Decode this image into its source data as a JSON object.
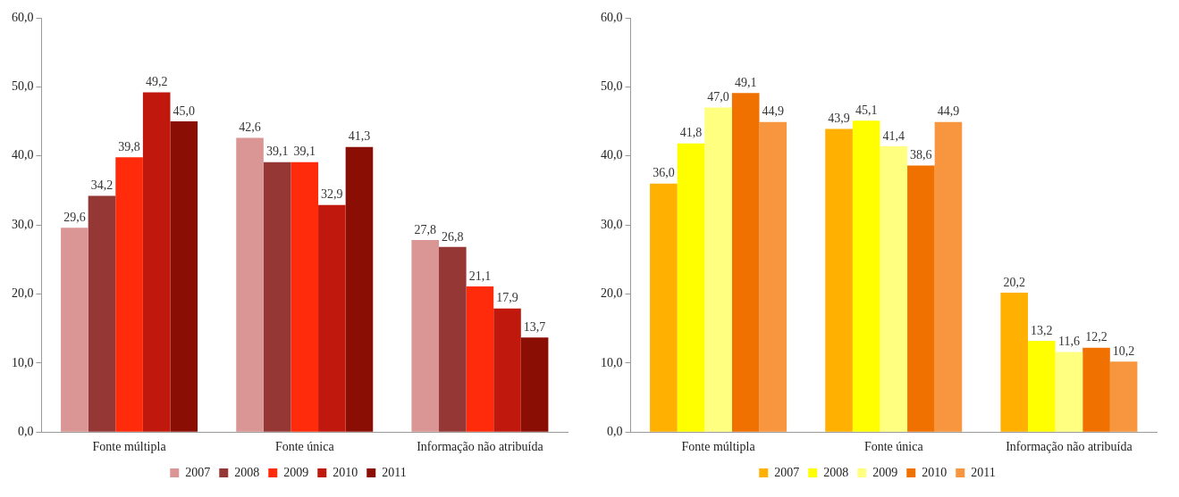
{
  "chart_data": [
    {
      "type": "bar",
      "categories": [
        "Fonte múltipla",
        "Fonte única",
        "Informação não atribuída"
      ],
      "ylim": [
        0,
        60
      ],
      "yticks": [
        {
          "value": 0,
          "label": "0,0"
        },
        {
          "value": 10,
          "label": "10,0"
        },
        {
          "value": 20,
          "label": "20,0"
        },
        {
          "value": 30,
          "label": "30,0"
        },
        {
          "value": 40,
          "label": "40,0"
        },
        {
          "value": 50,
          "label": "50,0"
        },
        {
          "value": 60,
          "label": "60,0"
        }
      ],
      "grid": false,
      "legend": "bottom",
      "series": [
        {
          "name": "2007",
          "color": "#d99694",
          "values": [
            29.6,
            42.6,
            27.8
          ],
          "value_labels": [
            "29,6",
            "42,6",
            "27,8"
          ]
        },
        {
          "name": "2008",
          "color": "#953735",
          "values": [
            34.2,
            39.1,
            26.8
          ],
          "value_labels": [
            "34,2",
            "39,1",
            "26,8"
          ]
        },
        {
          "name": "2009",
          "color": "#ff2b0a",
          "values": [
            39.8,
            39.1,
            21.1
          ],
          "value_labels": [
            "39,8",
            "39,1",
            "21,1"
          ]
        },
        {
          "name": "2010",
          "color": "#c0180c",
          "values": [
            49.2,
            32.9,
            17.9
          ],
          "value_labels": [
            "49,2",
            "32,9",
            "17,9"
          ]
        },
        {
          "name": "2011",
          "color": "#8b0e04",
          "values": [
            45.0,
            41.3,
            13.7
          ],
          "value_labels": [
            "45,0",
            "41,3",
            "13,7"
          ]
        }
      ]
    },
    {
      "type": "bar",
      "categories": [
        "Fonte múltipla",
        "Fonte única",
        "Informação não atribuída"
      ],
      "ylim": [
        0,
        60
      ],
      "yticks": [
        {
          "value": 0,
          "label": "0,0"
        },
        {
          "value": 10,
          "label": "10,0"
        },
        {
          "value": 20,
          "label": "20,0"
        },
        {
          "value": 30,
          "label": "30,0"
        },
        {
          "value": 40,
          "label": "40,0"
        },
        {
          "value": 50,
          "label": "50,0"
        },
        {
          "value": 60,
          "label": "60,0"
        }
      ],
      "grid": false,
      "legend": "bottom",
      "series": [
        {
          "name": "2007",
          "color": "#ffb000",
          "values": [
            36.0,
            43.9,
            20.2
          ],
          "value_labels": [
            "36,0",
            "43,9",
            "20,2"
          ]
        },
        {
          "name": "2008",
          "color": "#ffff00",
          "values": [
            41.8,
            45.1,
            13.2
          ],
          "value_labels": [
            "41,8",
            "45,1",
            "13,2"
          ]
        },
        {
          "name": "2009",
          "color": "#ffff80",
          "values": [
            47.0,
            41.4,
            11.6
          ],
          "value_labels": [
            "47,0",
            "41,4",
            "11,6"
          ]
        },
        {
          "name": "2010",
          "color": "#f07000",
          "values": [
            49.1,
            38.6,
            12.2
          ],
          "value_labels": [
            "49,1",
            "38,6",
            "12,2"
          ]
        },
        {
          "name": "2011",
          "color": "#f7963f",
          "values": [
            44.9,
            44.9,
            10.2
          ],
          "value_labels": [
            "44,9",
            "44,9",
            "10,2"
          ]
        }
      ]
    }
  ]
}
